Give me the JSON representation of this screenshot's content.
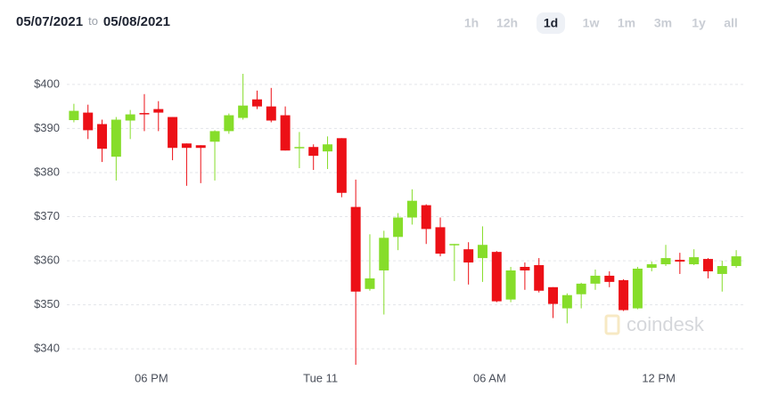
{
  "header": {
    "from": "05/07/2021",
    "separator": "to",
    "to": "05/08/2021"
  },
  "ranges": [
    "1h",
    "12h",
    "1d",
    "1w",
    "1m",
    "3m",
    "1y",
    "all"
  ],
  "selected_range": 2,
  "watermark": "coindesk",
  "chart_data": {
    "type": "candlestick",
    "categories": [
      null,
      null,
      null,
      null,
      null,
      null,
      "06 PM",
      null,
      null,
      null,
      null,
      null,
      null,
      null,
      null,
      null,
      null,
      null,
      "Tue 11",
      null,
      null,
      null,
      null,
      null,
      null,
      null,
      null,
      null,
      null,
      null,
      "06 AM",
      null,
      null,
      null,
      null,
      null,
      null,
      null,
      null,
      null,
      null,
      null,
      "12 PM",
      null,
      null,
      null,
      null,
      null
    ],
    "open": [
      391.9,
      393.6,
      391.0,
      383.6,
      391.8,
      393.5,
      394.4,
      392.6,
      386.6,
      386.2,
      387.0,
      389.4,
      392.4,
      396.6,
      395.0,
      393.0,
      385.6,
      385.8,
      384.8,
      387.8,
      372.2,
      353.6,
      357.8,
      365.4,
      369.8,
      372.6,
      367.6,
      363.6,
      362.6,
      360.6,
      362.0,
      351.2,
      358.6,
      359.0,
      354.0,
      349.2,
      352.4,
      354.8,
      356.6,
      355.6,
      349.2,
      358.4,
      359.2,
      360.2,
      359.2,
      360.4,
      357.0,
      358.8
    ],
    "high": [
      395.6,
      395.4,
      392.0,
      392.6,
      394.2,
      397.8,
      396.2,
      392.6,
      386.6,
      386.2,
      389.6,
      393.4,
      402.4,
      398.6,
      399.2,
      395.0,
      389.2,
      386.4,
      388.2,
      387.8,
      378.4,
      366.0,
      366.8,
      370.8,
      376.2,
      372.8,
      369.8,
      363.8,
      364.2,
      367.8,
      362.2,
      358.6,
      359.6,
      360.6,
      354.0,
      352.6,
      355.0,
      358.0,
      357.6,
      355.8,
      358.6,
      359.8,
      363.6,
      361.8,
      362.6,
      360.6,
      360.0,
      362.4
    ],
    "low": [
      391.4,
      387.6,
      382.4,
      378.2,
      387.6,
      389.4,
      389.4,
      382.8,
      377.0,
      377.6,
      378.2,
      388.8,
      392.0,
      394.4,
      391.4,
      385.0,
      381.0,
      380.6,
      380.8,
      374.4,
      336.4,
      353.2,
      347.8,
      362.4,
      368.2,
      363.8,
      361.0,
      355.4,
      354.6,
      355.2,
      350.6,
      350.6,
      353.4,
      352.8,
      347.0,
      345.8,
      349.2,
      353.4,
      354.0,
      348.6,
      349.0,
      357.6,
      358.8,
      357.0,
      359.0,
      356.0,
      353.0,
      358.4
    ],
    "close": [
      394.0,
      389.6,
      385.4,
      392.0,
      393.2,
      393.3,
      393.6,
      385.6,
      385.6,
      385.6,
      389.4,
      393.0,
      395.2,
      395.0,
      391.8,
      385.0,
      385.8,
      383.8,
      386.4,
      375.4,
      353.0,
      356.0,
      365.2,
      369.8,
      373.6,
      367.2,
      361.6,
      363.8,
      359.6,
      363.6,
      350.8,
      357.8,
      357.8,
      353.2,
      350.2,
      352.2,
      354.8,
      356.6,
      355.2,
      348.8,
      358.2,
      359.2,
      360.6,
      359.8,
      360.8,
      357.6,
      358.8,
      361.0
    ],
    "up_color": "#86dd2a",
    "down_color": "#ec1016",
    "ylim": [
      336,
      403
    ],
    "yticks": [
      {
        "value": 340,
        "label": "$340"
      },
      {
        "value": 350,
        "label": "$350"
      },
      {
        "value": 360,
        "label": "$360"
      },
      {
        "value": 370,
        "label": "$370"
      },
      {
        "value": 380,
        "label": "$380"
      },
      {
        "value": 390,
        "label": "$390"
      },
      {
        "value": 400,
        "label": "$400"
      }
    ],
    "grid": true
  }
}
